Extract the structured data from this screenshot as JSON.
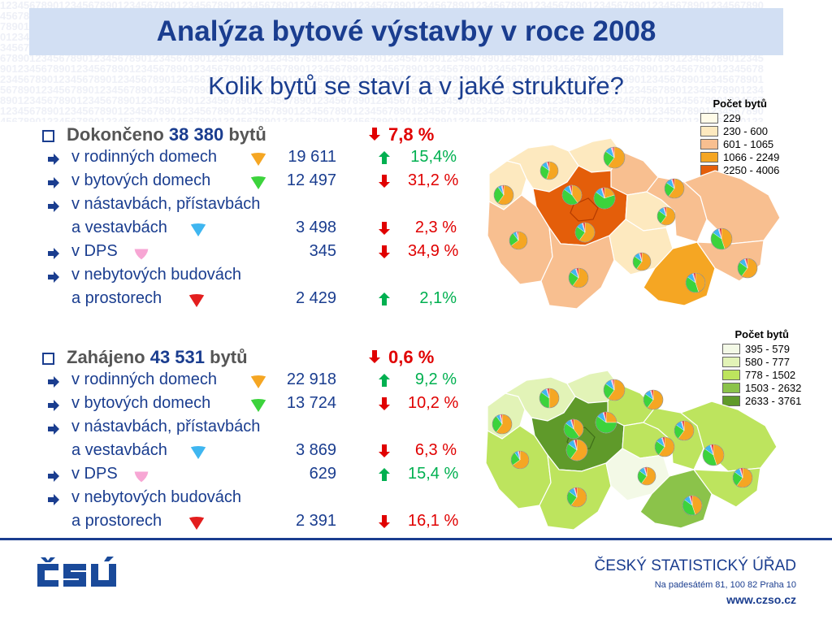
{
  "header": {
    "title": "Analýza bytové výstavby v roce 2008",
    "subtitle": "Kolik bytů se staví a v jaké struktuře?"
  },
  "completed": {
    "label": "Dokončeno",
    "total": "38 380",
    "unit": "bytů",
    "change": "7,8 %",
    "change_dir": "down",
    "rows": [
      {
        "line1": "v rodinných domech",
        "line2": "",
        "value": "19 611",
        "change": "15,4%",
        "dir": "up",
        "shape": "orange"
      },
      {
        "line1": "v bytových domech",
        "line2": "",
        "value": "12 497",
        "change": "31,2 %",
        "dir": "down",
        "shape": "green"
      },
      {
        "line1": "v nástavbách, přístavbách",
        "line2": "a vestavbách",
        "value": "3 498",
        "change": "2,3 %",
        "dir": "down",
        "shape": "blue"
      },
      {
        "line1": "v DPS",
        "line2": "",
        "value": "345",
        "change": "34,9 %",
        "dir": "down",
        "shape": "pink"
      },
      {
        "line1": "v nebytových budovách",
        "line2": "a prostorech",
        "value": "2 429",
        "change": "2,1%",
        "dir": "up",
        "shape": "red"
      }
    ]
  },
  "started": {
    "label": "Zahájeno",
    "total": "43 531",
    "unit": "bytů",
    "change": "0,6 %",
    "change_dir": "down",
    "rows": [
      {
        "line1": "v rodinných domech",
        "line2": "",
        "value": "22 918",
        "change": "9,2 %",
        "dir": "up",
        "shape": "orange"
      },
      {
        "line1": "v bytových domech",
        "line2": "",
        "value": "13 724",
        "change": "10,2 %",
        "dir": "down",
        "shape": "green"
      },
      {
        "line1": "v nástavbách, přístavbách",
        "line2": "a vestavbách",
        "value": "3 869",
        "change": "6,3 %",
        "dir": "down",
        "shape": "blue"
      },
      {
        "line1": "v DPS",
        "line2": "",
        "value": "629",
        "change": "15,4 %",
        "dir": "up",
        "shape": "pink"
      },
      {
        "line1": "v nebytových budovách",
        "line2": "a prostorech",
        "value": "2 391",
        "change": "16,1 %",
        "dir": "down",
        "shape": "red"
      }
    ]
  },
  "legend_completed": {
    "title": "Počet bytů",
    "items": [
      {
        "label": "229",
        "color": "#fffbe8"
      },
      {
        "label": "230 - 600",
        "color": "#fde9bf"
      },
      {
        "label": "601 - 1065",
        "color": "#f8bf90"
      },
      {
        "label": "1066 - 2249",
        "color": "#f5a623"
      },
      {
        "label": "2250 - 4006",
        "color": "#e45e0a"
      }
    ]
  },
  "legend_started": {
    "title": "Počet bytů",
    "items": [
      {
        "label": "395 - 579",
        "color": "#f3f9e6"
      },
      {
        "label": "580 - 777",
        "color": "#e2f3b7"
      },
      {
        "label": "778 - 1502",
        "color": "#bde45e"
      },
      {
        "label": "1503 - 2632",
        "color": "#8bc34a"
      },
      {
        "label": "2633 - 3761",
        "color": "#5f9a2a"
      }
    ]
  },
  "colors": {
    "title": "#1a3d8f",
    "up": "#00b050",
    "down": "#e00000",
    "orange": "#f5a623",
    "green": "#3cd33c",
    "blue": "#3fb6f0",
    "pink": "#f7a6d4",
    "red": "#e31e1e"
  },
  "footer": {
    "logo": "ČSÚ",
    "org": "ČESKÝ STATISTICKÝ ÚŘAD",
    "address": "Na padesátém 81, 100 82  Praha 10",
    "url": "www.czso.cz"
  }
}
